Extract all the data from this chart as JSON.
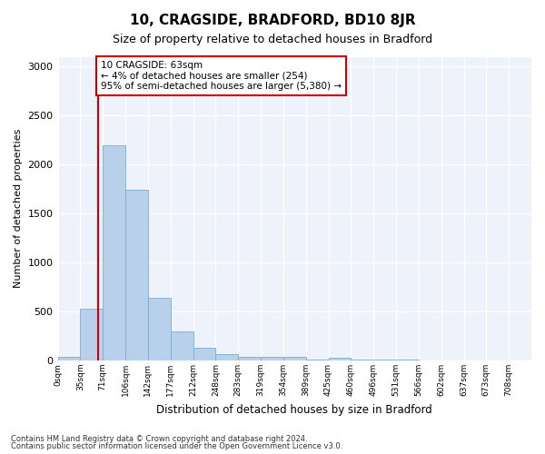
{
  "title": "10, CRAGSIDE, BRADFORD, BD10 8JR",
  "subtitle": "Size of property relative to detached houses in Bradford",
  "xlabel": "Distribution of detached houses by size in Bradford",
  "ylabel": "Number of detached properties",
  "bar_color": "#b8d0ea",
  "bar_edge_color": "#7aadd4",
  "background_color": "#eef2fa",
  "bins": [
    "0sqm",
    "35sqm",
    "71sqm",
    "106sqm",
    "142sqm",
    "177sqm",
    "212sqm",
    "248sqm",
    "283sqm",
    "319sqm",
    "354sqm",
    "389sqm",
    "425sqm",
    "460sqm",
    "496sqm",
    "531sqm",
    "566sqm",
    "602sqm",
    "637sqm",
    "673sqm",
    "708sqm"
  ],
  "values": [
    35,
    525,
    2200,
    1740,
    635,
    295,
    130,
    65,
    40,
    35,
    35,
    5,
    25,
    5,
    5,
    5,
    2,
    2,
    2,
    2,
    0
  ],
  "property_size": 63,
  "bin_width": 35,
  "annotation_text": "10 CRAGSIDE: 63sqm\n← 4% of detached houses are smaller (254)\n95% of semi-detached houses are larger (5,380) →",
  "annotation_box_color": "#ffffff",
  "annotation_box_edge_color": "#cc0000",
  "vline_color": "#cc0000",
  "ylim": [
    0,
    3100
  ],
  "yticks": [
    0,
    500,
    1000,
    1500,
    2000,
    2500,
    3000
  ],
  "footer_line1": "Contains HM Land Registry data © Crown copyright and database right 2024.",
  "footer_line2": "Contains public sector information licensed under the Open Government Licence v3.0."
}
